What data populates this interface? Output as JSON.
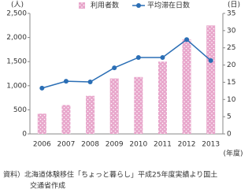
{
  "chart_data": {
    "type": "bar",
    "y_unit": "(人)",
    "y2_unit": "(日)",
    "x_unit": "(年度)",
    "categories": [
      "2006",
      "2007",
      "2008",
      "2009",
      "2010",
      "2011",
      "2012",
      "2013"
    ],
    "series": [
      {
        "name": "利用者数",
        "type": "bar",
        "color": "#e8a6cb",
        "values": [
          420,
          600,
          790,
          1150,
          1180,
          1500,
          1960,
          2250
        ]
      },
      {
        "name": "平均滞在日数",
        "type": "line",
        "axis": "y2",
        "color": "#2a6eb5",
        "values": [
          13.3,
          15.3,
          15.1,
          19.2,
          22.2,
          22.2,
          27.4,
          21.3
        ]
      }
    ],
    "ylim": [
      0,
      2500
    ],
    "yticks": [
      0,
      500,
      {
        "value": 1000,
        "label": "1,000"
      },
      {
        "value": 1500,
        "label": "1,500"
      },
      {
        "value": 2000,
        "label": "2,000"
      },
      {
        "value": 2500,
        "label": "2,500"
      }
    ],
    "y2lim": [
      0,
      35
    ],
    "y2ticks": [
      0,
      5,
      10,
      15,
      20,
      25,
      30,
      35
    ],
    "source": [
      "資料）北海道体験移住「ちょっと暮らし」平成25年度実績より国土",
      "交通省作成"
    ]
  }
}
